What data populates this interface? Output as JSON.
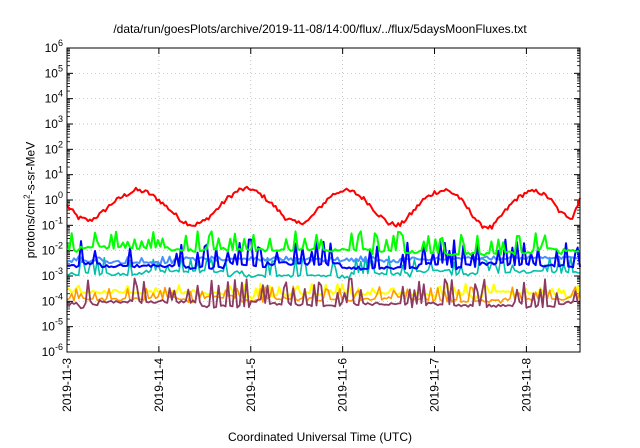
{
  "chart_data": {
    "type": "line",
    "title": "/data/run/goesPlots/archive/2019-11-08/14:00/flux/../flux/5daysMoonFluxes.txt",
    "xlabel": "Coordinated Universal Time (UTC)",
    "ylabel": {
      "pre": "protons/cm",
      "sup": "2",
      "post": "-s-sr-MeV"
    },
    "y_scale": "log",
    "ylim": [
      1e-06,
      1000000.0
    ],
    "y_ticks": [
      {
        "exp": "-6"
      },
      {
        "exp": "-5"
      },
      {
        "exp": "-4"
      },
      {
        "exp": "-3"
      },
      {
        "exp": "-2"
      },
      {
        "exp": "-1"
      },
      {
        "exp": "0"
      },
      {
        "exp": "1"
      },
      {
        "exp": "2"
      },
      {
        "exp": "3"
      },
      {
        "exp": "4"
      },
      {
        "exp": "5"
      },
      {
        "exp": "6"
      }
    ],
    "x_ticks": [
      "2019-11-3",
      "2019-11-4",
      "2019-11-5",
      "2019-11-6",
      "2019-11-7",
      "2019-11-8"
    ],
    "xlim": [
      "2019-11-03T00:00",
      "2019-11-08T14:00"
    ],
    "grid": true,
    "series": [
      {
        "color": "#ff0000",
        "x": [
          "2019-11-03T00:00",
          "2019-11-03T03:00",
          "2019-11-03T06:00",
          "2019-11-03T09:00",
          "2019-11-03T12:00",
          "2019-11-03T15:00",
          "2019-11-03T18:00",
          "2019-11-03T21:00",
          "2019-11-04T00:00",
          "2019-11-04T03:00",
          "2019-11-04T06:00",
          "2019-11-04T09:00",
          "2019-11-04T12:00",
          "2019-11-04T15:00",
          "2019-11-04T18:00",
          "2019-11-04T21:00",
          "2019-11-05T00:00",
          "2019-11-05T03:00",
          "2019-11-05T06:00",
          "2019-11-05T09:00",
          "2019-11-05T12:00",
          "2019-11-05T15:00",
          "2019-11-05T18:00",
          "2019-11-05T21:00",
          "2019-11-06T00:00",
          "2019-11-06T03:00",
          "2019-11-06T06:00",
          "2019-11-06T09:00",
          "2019-11-06T12:00",
          "2019-11-06T15:00",
          "2019-11-06T18:00",
          "2019-11-06T21:00",
          "2019-11-07T00:00",
          "2019-11-07T03:00",
          "2019-11-07T06:00",
          "2019-11-07T09:00",
          "2019-11-07T12:00",
          "2019-11-07T15:00",
          "2019-11-07T18:00",
          "2019-11-07T21:00",
          "2019-11-08T00:00",
          "2019-11-08T03:00",
          "2019-11-08T06:00",
          "2019-11-08T09:00",
          "2019-11-08T12:00",
          "2019-11-08T14:00"
        ],
        "y": [
          0.6,
          0.2,
          0.15,
          0.3,
          0.8,
          1.5,
          2.5,
          2.0,
          1.0,
          0.4,
          0.15,
          0.1,
          0.15,
          0.4,
          1.2,
          2.5,
          2.8,
          1.5,
          0.6,
          0.2,
          0.12,
          0.15,
          0.5,
          1.5,
          2.5,
          2.0,
          1.0,
          0.3,
          0.12,
          0.1,
          0.3,
          1.0,
          2.0,
          2.5,
          1.5,
          0.4,
          0.1,
          0.08,
          0.3,
          1.0,
          2.0,
          2.2,
          1.2,
          0.3,
          0.2,
          1.2
        ]
      },
      {
        "color": "#00ff00",
        "base": 0.01,
        "spike_to": 0.06,
        "x_range": [
          "2019-11-03T00:00",
          "2019-11-08T14:00"
        ]
      },
      {
        "color": "#0000ff",
        "base": 0.0025,
        "spike_to": 0.03,
        "x_range": [
          "2019-11-03T00:00",
          "2019-11-08T14:00"
        ]
      },
      {
        "color": "#4a90ff",
        "base": 0.004,
        "spike_to": 0.006,
        "x_range": [
          "2019-11-03T00:00",
          "2019-11-08T14:00"
        ]
      },
      {
        "color": "#00c0a8",
        "base": 0.0012,
        "spike_to": 0.006,
        "x_range": [
          "2019-11-03T00:00",
          "2019-11-08T14:00"
        ]
      },
      {
        "color": "#ffff00",
        "base": 0.00018,
        "spike_to": 0.0005,
        "x_range": [
          "2019-11-03T00:00",
          "2019-11-08T14:00"
        ]
      },
      {
        "color": "#ff9900",
        "base": 0.00012,
        "spike_to": 0.0004,
        "x_range": [
          "2019-11-03T00:00",
          "2019-11-08T14:00"
        ]
      },
      {
        "color": "#8b3a62",
        "base": 8e-05,
        "spike_to": 0.0008,
        "x_range": [
          "2019-11-03T00:00",
          "2019-11-08T14:00"
        ]
      }
    ]
  }
}
